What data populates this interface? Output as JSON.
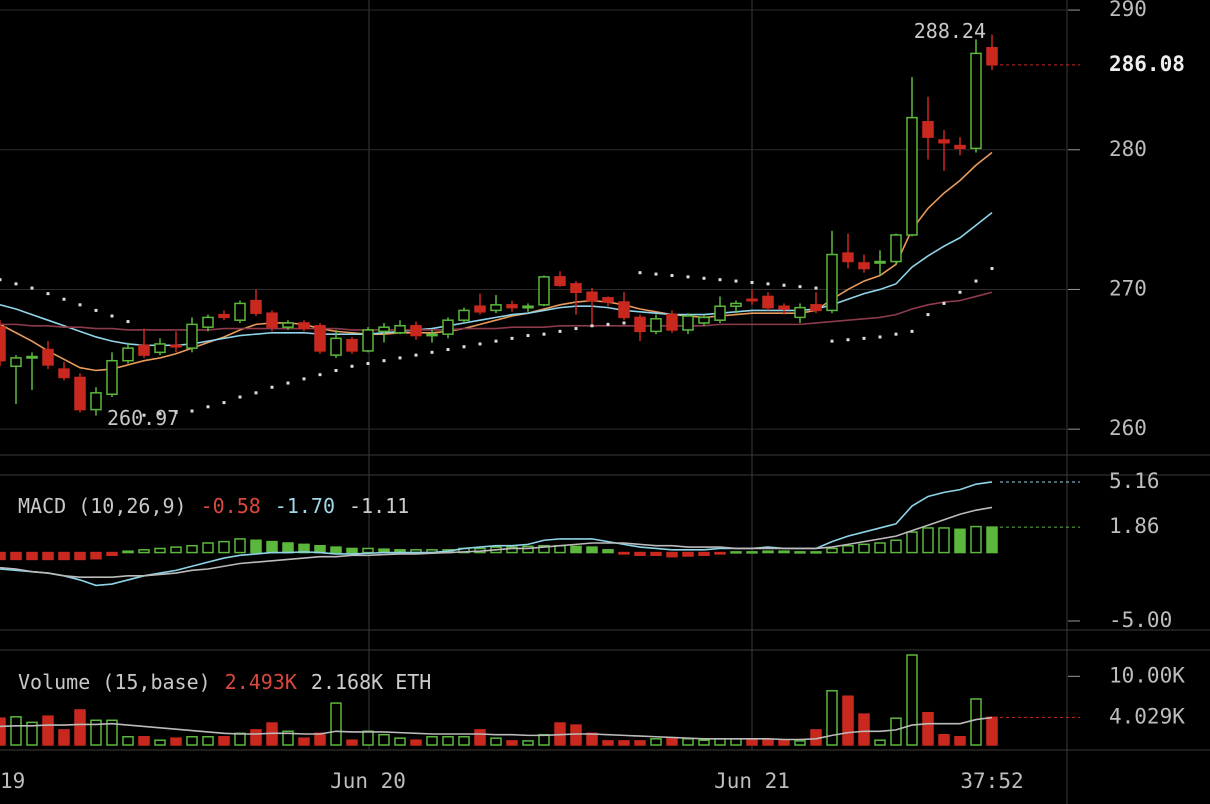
{
  "chart_data": [
    {
      "type": "candlestick",
      "categories": [
        "19",
        null,
        null,
        null,
        null,
        null,
        null,
        null,
        null,
        null,
        null,
        null,
        null,
        null,
        null,
        null,
        null,
        null,
        null,
        null,
        null,
        null,
        null,
        "Jun 20",
        null,
        null,
        null,
        null,
        null,
        null,
        null,
        null,
        null,
        null,
        null,
        null,
        null,
        null,
        null,
        null,
        null,
        null,
        null,
        null,
        null,
        null,
        null,
        "Jun 21",
        null,
        null,
        null,
        null,
        null,
        null,
        null,
        null,
        null,
        null,
        null,
        null,
        null,
        null,
        "37:52"
      ],
      "open": [
        267.3,
        264.5,
        265.1,
        265.7,
        264.3,
        263.7,
        261.4,
        262.5,
        264.9,
        266.0,
        265.5,
        266.0,
        265.8,
        267.3,
        268.2,
        267.8,
        269.2,
        268.3,
        267.3,
        267.6,
        267.4,
        265.3,
        266.4,
        265.6,
        267.0,
        266.9,
        267.4,
        266.7,
        266.8,
        267.8,
        268.8,
        268.5,
        268.9,
        268.7,
        268.9,
        270.9,
        270.4,
        269.8,
        269.4,
        269.1,
        268.0,
        267.0,
        268.2,
        267.1,
        267.6,
        267.8,
        268.8,
        269.3,
        269.5,
        268.8,
        268.0,
        268.9,
        268.5,
        272.6,
        271.9,
        271.9,
        272.0,
        273.9,
        282.0,
        280.7,
        280.3,
        280.1,
        287.3
      ],
      "high": [
        267.8,
        265.3,
        265.5,
        266.3,
        264.8,
        264.0,
        263.0,
        265.5,
        266.2,
        267.2,
        266.5,
        267.0,
        268.0,
        268.2,
        268.5,
        269.2,
        270.0,
        268.5,
        267.8,
        267.8,
        267.6,
        267.1,
        266.6,
        267.3,
        267.6,
        267.8,
        267.7,
        267.1,
        268.0,
        268.7,
        269.7,
        269.6,
        269.2,
        269.0,
        271.0,
        271.3,
        270.6,
        270.1,
        269.5,
        269.8,
        268.2,
        268.2,
        268.5,
        268.3,
        268.2,
        269.5,
        269.2,
        270.0,
        269.8,
        269.0,
        269.0,
        269.8,
        274.2,
        274.0,
        272.5,
        272.8,
        274.0,
        285.2,
        283.8,
        281.4,
        280.9,
        287.9,
        288.24
      ],
      "low": [
        264.5,
        261.8,
        262.8,
        264.3,
        263.5,
        261.2,
        260.97,
        262.3,
        264.7,
        265.1,
        265.3,
        265.5,
        265.5,
        267.0,
        267.8,
        267.6,
        268.1,
        267.0,
        267.1,
        267.0,
        265.4,
        265.1,
        265.4,
        265.5,
        266.2,
        266.8,
        266.4,
        266.2,
        266.5,
        267.6,
        268.2,
        268.3,
        268.4,
        268.4,
        268.8,
        270.2,
        268.2,
        267.5,
        268.8,
        267.8,
        266.3,
        266.8,
        266.9,
        266.8,
        267.4,
        267.6,
        268.3,
        268.9,
        268.5,
        268.2,
        267.6,
        268.3,
        268.3,
        271.5,
        271.2,
        271.0,
        271.8,
        273.8,
        279.3,
        278.5,
        279.6,
        279.8,
        285.7
      ],
      "close": [
        264.9,
        265.1,
        265.2,
        264.6,
        263.7,
        261.4,
        262.6,
        264.9,
        265.8,
        265.3,
        266.1,
        265.9,
        267.5,
        268.0,
        268.0,
        269.0,
        268.3,
        267.3,
        267.6,
        267.2,
        265.6,
        266.5,
        265.6,
        267.1,
        267.3,
        267.4,
        266.7,
        266.8,
        267.8,
        268.5,
        268.4,
        268.9,
        268.7,
        268.8,
        270.9,
        270.3,
        269.8,
        269.2,
        269.1,
        268.0,
        267.0,
        267.9,
        267.1,
        268.1,
        268.0,
        268.8,
        269.0,
        269.2,
        268.7,
        268.6,
        268.7,
        268.5,
        272.5,
        272.0,
        271.5,
        272.0,
        273.9,
        282.3,
        280.9,
        280.5,
        280.1,
        286.9,
        286.08
      ],
      "up_color": "#5cb83c",
      "down_color": "#c8281e",
      "series": [
        {
          "color": "#e89a5a",
          "values": [
            267.5,
            266.9,
            266.3,
            265.6,
            265.0,
            264.4,
            264.2,
            264.3,
            264.6,
            264.9,
            265.1,
            265.4,
            265.8,
            266.2,
            266.6,
            267.1,
            267.5,
            267.6,
            267.6,
            267.5,
            267.2,
            267.0,
            266.9,
            266.8,
            266.8,
            266.9,
            266.9,
            266.9,
            267.0,
            267.2,
            267.5,
            267.8,
            268.1,
            268.3,
            268.6,
            268.9,
            269.1,
            269.2,
            269.1,
            268.9,
            268.6,
            268.4,
            268.2,
            268.1,
            268.0,
            268.1,
            268.2,
            268.3,
            268.3,
            268.3,
            268.3,
            268.5,
            269.3,
            270.0,
            270.6,
            271.0,
            271.8,
            274.3,
            275.8,
            276.9,
            277.8,
            278.9,
            279.8
          ]
        },
        {
          "color": "#8fd4e8",
          "values": [
            268.9,
            268.6,
            268.2,
            267.8,
            267.4,
            267.0,
            266.6,
            266.3,
            266.1,
            266.0,
            266.0,
            266.0,
            266.1,
            266.3,
            266.5,
            266.7,
            266.8,
            266.9,
            266.9,
            266.9,
            266.8,
            266.8,
            266.8,
            266.8,
            266.9,
            267.0,
            267.1,
            267.2,
            267.4,
            267.6,
            267.8,
            268.0,
            268.2,
            268.3,
            268.5,
            268.7,
            268.8,
            268.8,
            268.7,
            268.5,
            268.4,
            268.3,
            268.2,
            268.2,
            268.2,
            268.3,
            268.4,
            268.5,
            268.5,
            268.5,
            268.5,
            268.6,
            268.9,
            269.3,
            269.7,
            270.0,
            270.4,
            271.6,
            272.4,
            273.1,
            273.7,
            274.6,
            275.5
          ]
        },
        {
          "color": "#8c3b4c",
          "values": [
            267.5,
            267.5,
            267.4,
            267.4,
            267.3,
            267.3,
            267.2,
            267.2,
            267.1,
            267.1,
            267.1,
            267.1,
            267.1,
            267.1,
            267.2,
            267.2,
            267.2,
            267.2,
            267.2,
            267.2,
            267.2,
            267.2,
            267.1,
            267.1,
            267.1,
            267.1,
            267.1,
            267.1,
            267.1,
            267.2,
            267.2,
            267.2,
            267.3,
            267.3,
            267.3,
            267.4,
            267.4,
            267.4,
            267.4,
            267.4,
            267.4,
            267.4,
            267.4,
            267.4,
            267.4,
            267.5,
            267.5,
            267.5,
            267.5,
            267.5,
            267.5,
            267.6,
            267.7,
            267.8,
            267.9,
            268.0,
            268.2,
            268.6,
            268.9,
            269.1,
            269.2,
            269.5,
            269.8
          ]
        }
      ],
      "sar": {
        "color": "#dddddd",
        "values": [
          270.7,
          270.4,
          270.1,
          269.7,
          269.3,
          268.9,
          268.5,
          268.1,
          267.7,
          261.0,
          261.1,
          261.2,
          261.3,
          261.6,
          261.9,
          262.3,
          262.6,
          263.0,
          263.3,
          263.6,
          263.9,
          264.2,
          264.5,
          264.7,
          264.9,
          265.1,
          265.3,
          265.5,
          265.7,
          265.9,
          266.1,
          266.3,
          266.5,
          266.7,
          266.8,
          267.0,
          267.2,
          267.4,
          267.5,
          267.6,
          271.2,
          271.1,
          271.0,
          270.9,
          270.8,
          270.7,
          270.6,
          270.5,
          270.4,
          270.3,
          270.2,
          270.1,
          266.3,
          266.4,
          266.5,
          266.6,
          266.8,
          267.0,
          268.2,
          269.0,
          269.8,
          270.6,
          271.5
        ]
      },
      "ylim": [
        258.15,
        290.72
      ],
      "yticks": [
        260,
        270,
        280,
        290
      ],
      "grid": true
    },
    {
      "type": "macd",
      "title": "MACD (10,26,9)",
      "legend": [
        {
          "value": -0.58,
          "label": "-0.58",
          "color": "#d8483c"
        },
        {
          "value": -1.7,
          "label": "-1.70",
          "color": "#9fd8e8"
        },
        {
          "value": -1.11,
          "label": "-1.11",
          "color": "#cccccc"
        }
      ],
      "histogram": {
        "up_color": "#5cb83c",
        "down_color": "#c8281e",
        "values": [
          -0.5,
          -0.5,
          -0.5,
          -0.5,
          -0.5,
          -0.5,
          -0.45,
          -0.2,
          0.1,
          0.2,
          0.3,
          0.4,
          0.5,
          0.7,
          0.8,
          1.0,
          0.9,
          0.8,
          0.7,
          0.6,
          0.5,
          0.4,
          0.3,
          0.3,
          0.25,
          0.2,
          0.2,
          0.2,
          0.2,
          0.3,
          0.3,
          0.4,
          0.4,
          0.45,
          0.5,
          0.5,
          0.45,
          0.4,
          0.2,
          -0.1,
          -0.2,
          -0.2,
          -0.3,
          -0.25,
          -0.2,
          -0.1,
          0.05,
          0.05,
          0.1,
          0.1,
          0.05,
          0.05,
          0.3,
          0.5,
          0.6,
          0.7,
          0.9,
          1.5,
          1.8,
          1.8,
          1.7,
          1.9,
          1.86
        ]
      },
      "series": [
        {
          "color": "#8fd4e8",
          "values": [
            -1.2,
            -1.3,
            -1.4,
            -1.5,
            -1.7,
            -2.0,
            -2.4,
            -2.3,
            -2.0,
            -1.7,
            -1.5,
            -1.3,
            -1.0,
            -0.7,
            -0.4,
            -0.2,
            -0.1,
            0,
            0,
            0.05,
            0,
            -0.1,
            -0.1,
            -0.05,
            0,
            0,
            0,
            0,
            0.1,
            0.3,
            0.4,
            0.5,
            0.5,
            0.6,
            0.9,
            1.0,
            1.0,
            1.0,
            0.8,
            0.6,
            0.4,
            0.3,
            0.2,
            0.2,
            0.2,
            0.3,
            0.3,
            0.3,
            0.4,
            0.3,
            0.3,
            0.3,
            0.8,
            1.2,
            1.5,
            1.8,
            2.1,
            3.4,
            4.1,
            4.4,
            4.6,
            5.0,
            5.16
          ]
        },
        {
          "color": "#bbbbbb",
          "values": [
            -1.1,
            -1.2,
            -1.4,
            -1.5,
            -1.7,
            -1.8,
            -1.8,
            -1.8,
            -1.7,
            -1.7,
            -1.6,
            -1.5,
            -1.3,
            -1.2,
            -1.0,
            -0.8,
            -0.7,
            -0.6,
            -0.5,
            -0.4,
            -0.3,
            -0.3,
            -0.2,
            -0.2,
            -0.15,
            -0.1,
            -0.1,
            -0.05,
            0,
            0.05,
            0.1,
            0.2,
            0.3,
            0.3,
            0.4,
            0.5,
            0.6,
            0.7,
            0.7,
            0.7,
            0.6,
            0.5,
            0.5,
            0.4,
            0.4,
            0.4,
            0.3,
            0.3,
            0.3,
            0.3,
            0.3,
            0.3,
            0.4,
            0.6,
            0.8,
            1.0,
            1.2,
            1.6,
            2.0,
            2.4,
            2.8,
            3.1,
            3.3
          ]
        }
      ],
      "ylim": [
        -5.66,
        5.67
      ],
      "yticks": [
        {
          "value": -5,
          "label": "-5.00"
        }
      ],
      "grid": false
    },
    {
      "type": "volume",
      "title": "Volume (15,base)",
      "legend": [
        {
          "value": 2493,
          "label": "2.493K",
          "color": "#d8483c"
        },
        {
          "value": 2168,
          "label": "2.168K ETH",
          "color": "#cccccc"
        }
      ],
      "values": [
        3900,
        4100,
        3300,
        4200,
        2200,
        5100,
        3600,
        3600,
        1200,
        1200,
        700,
        1000,
        1200,
        1200,
        1200,
        1700,
        2200,
        3200,
        2000,
        1000,
        1700,
        6100,
        700,
        2000,
        1500,
        1000,
        700,
        1200,
        1200,
        1200,
        2200,
        1000,
        600,
        600,
        1500,
        3200,
        2900,
        1700,
        600,
        600,
        600,
        900,
        900,
        900,
        700,
        900,
        900,
        700,
        700,
        700,
        600,
        2200,
        7900,
        7100,
        4500,
        700,
        3900,
        13100,
        4700,
        1500,
        1200,
        6700,
        4029
      ],
      "value_labels": [
        null,
        null,
        null,
        null,
        null,
        null,
        null,
        null,
        null,
        null,
        null,
        null,
        null,
        null,
        null,
        null,
        null,
        null,
        null,
        null,
        null,
        null,
        null,
        null,
        null,
        null,
        null,
        null,
        null,
        null,
        null,
        null,
        null,
        null,
        null,
        null,
        null,
        null,
        null,
        null,
        null,
        null,
        null,
        null,
        null,
        null,
        null,
        null,
        null,
        null,
        null,
        null,
        null,
        null,
        null,
        null,
        null,
        null,
        null,
        null,
        null,
        null,
        "4.029K"
      ],
      "series": [
        {
          "color": "#bbbbbb",
          "values": [
            2700,
            2800,
            2800,
            2900,
            2900,
            3000,
            3000,
            3100,
            2900,
            2700,
            2500,
            2300,
            2100,
            1900,
            1700,
            1600,
            1600,
            1700,
            1700,
            1600,
            1600,
            2000,
            1900,
            1900,
            1900,
            1800,
            1700,
            1600,
            1600,
            1600,
            1600,
            1500,
            1500,
            1400,
            1400,
            1500,
            1600,
            1600,
            1500,
            1400,
            1300,
            1200,
            1100,
            1000,
            900,
            900,
            900,
            900,
            900,
            800,
            800,
            900,
            1400,
            1800,
            2000,
            2000,
            2200,
            2900,
            3100,
            3100,
            3100,
            3700,
            4000
          ]
        }
      ],
      "ylim": [
        -728,
        13832
      ],
      "yticks": [
        {
          "value": 10000,
          "label": "10.00K"
        }
      ],
      "grid": false
    }
  ]
}
